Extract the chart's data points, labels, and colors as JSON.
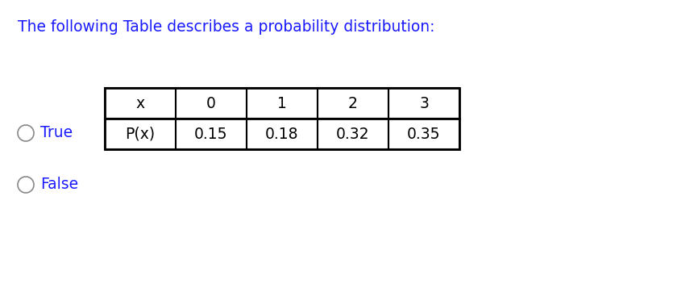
{
  "title": "The following Table describes a probability distribution:",
  "title_fontsize": 13.5,
  "col_labels": [
    "x",
    "0",
    "1",
    "2",
    "3"
  ],
  "row_label": "P(x)",
  "values": [
    "0.15",
    "0.18",
    "0.32",
    "0.35"
  ],
  "options": [
    "True",
    "False"
  ],
  "background_color": "#ffffff",
  "text_color": "#1a1aff",
  "table_text_color": "#000000",
  "option_fontsize": 13.5,
  "table_fontsize": 13.5,
  "circle_color": "#888888"
}
